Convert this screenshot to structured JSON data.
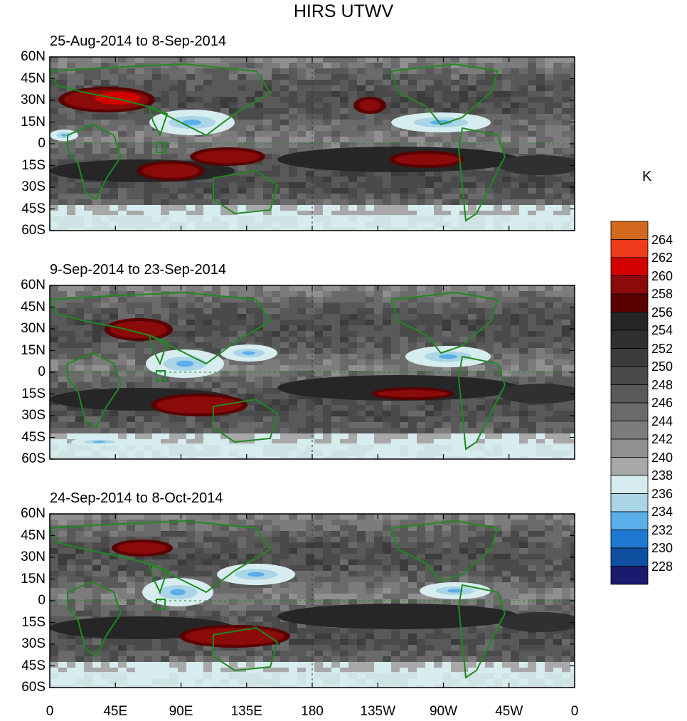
{
  "title": "HIRS UTWV",
  "unit": "K",
  "panels": [
    {
      "title": "25-Aug-2014 to 8-Sep-2014"
    },
    {
      "title": "9-Sep-2014 to 23-Sep-2014"
    },
    {
      "title": "24-Sep-2014 to 8-Oct-2014"
    }
  ],
  "lat_ticks": [
    "60N",
    "45N",
    "30N",
    "15N",
    "0",
    "15S",
    "30S",
    "45S",
    "60S"
  ],
  "lon_ticks": [
    "0",
    "45E",
    "90E",
    "135E",
    "180",
    "135W",
    "90W",
    "45W",
    "0"
  ],
  "colorbar": {
    "labels": [
      "264",
      "262",
      "260",
      "258",
      "256",
      "254",
      "252",
      "250",
      "248",
      "246",
      "244",
      "242",
      "240",
      "238",
      "236",
      "234",
      "232",
      "230",
      "228"
    ],
    "colors": [
      "#d2691e",
      "#ee3b1c",
      "#d40000",
      "#8b0a0a",
      "#5a0000",
      "#262626",
      "#303030",
      "#3c3c3c",
      "#4a4a4a",
      "#595959",
      "#6a6a6a",
      "#7c7c7c",
      "#909090",
      "#a8a8a8",
      "#d6ecef",
      "#a9d5e6",
      "#5aaeea",
      "#1f78d2",
      "#0f4fa0",
      "#1a1a6e"
    ]
  },
  "chart_data": {
    "type": "heatmap",
    "title": "HIRS UTWV",
    "colorbar_unit": "K",
    "colorbar_range": [
      228,
      264
    ],
    "colorbar_step": 2,
    "x_range": [
      "0",
      "0"
    ],
    "y_range": [
      "60S",
      "60N"
    ],
    "panels": [
      {
        "title": "25-Aug-2014 to 8-Sep-2014"
      },
      {
        "title": "9-Sep-2014 to 23-Sep-2014"
      },
      {
        "title": "24-Sep-2014 to 8-Oct-2014"
      }
    ]
  }
}
